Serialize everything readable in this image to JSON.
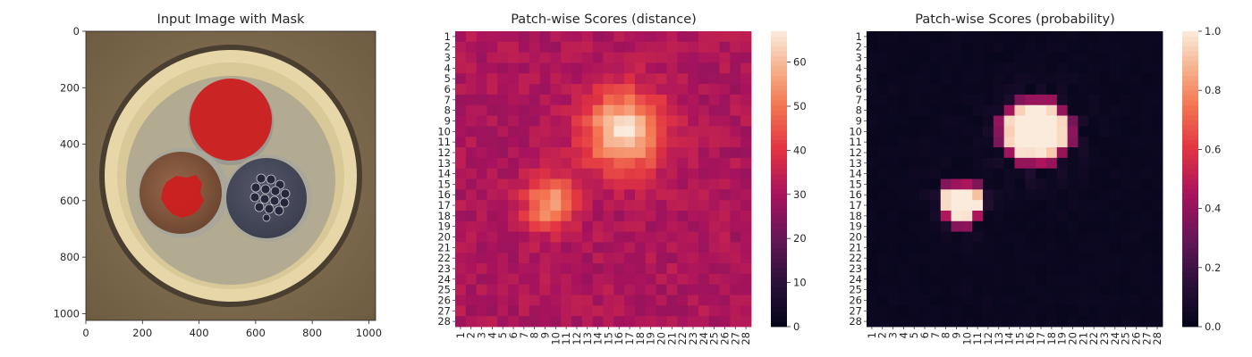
{
  "colors": {
    "masked_region": "#cc1f1f",
    "background": "#ffffff",
    "colormap_distance": "rocket",
    "colormap_probability": "rocket"
  },
  "chart_data": [
    {
      "type": "image",
      "title": "Input Image with Mask",
      "description_shown": "cross-section of a cable with three conductors; regions with red mask overlay",
      "x_ticks": [
        "0",
        "200",
        "400",
        "600",
        "800",
        "1000"
      ],
      "y_ticks": [
        "0",
        "200",
        "400",
        "600",
        "800",
        "1000"
      ],
      "xlim": [
        0,
        1024
      ],
      "ylim": [
        1024,
        0
      ]
    },
    {
      "type": "heatmap",
      "title": "Patch-wise Scores (distance)",
      "rows": 28,
      "cols": 28,
      "row_labels": [
        "1",
        "2",
        "3",
        "4",
        "5",
        "6",
        "7",
        "8",
        "9",
        "10",
        "11",
        "12",
        "13",
        "14",
        "15",
        "16",
        "17",
        "18",
        "19",
        "20",
        "21",
        "22",
        "23",
        "24",
        "25",
        "26",
        "27",
        "28"
      ],
      "col_labels": [
        "1",
        "2",
        "3",
        "4",
        "5",
        "6",
        "7",
        "8",
        "9",
        "10",
        "11",
        "12",
        "13",
        "14",
        "15",
        "16",
        "17",
        "18",
        "19",
        "20",
        "21",
        "22",
        "23",
        "24",
        "25",
        "26",
        "27",
        "28"
      ],
      "base_value": 31,
      "hotspots": [
        {
          "row": 10,
          "col": 16.5,
          "peak": 66,
          "sigma": 2.6
        },
        {
          "row": 16.8,
          "col": 9.5,
          "peak": 57,
          "sigma": 1.7
        }
      ],
      "colorbar": {
        "min": 0,
        "max": 67,
        "ticks": [
          0,
          10,
          20,
          30,
          40,
          50,
          60
        ]
      }
    },
    {
      "type": "heatmap",
      "title": "Patch-wise Scores (probability)",
      "rows": 28,
      "cols": 28,
      "row_labels": [
        "1",
        "2",
        "3",
        "4",
        "5",
        "6",
        "7",
        "8",
        "9",
        "10",
        "11",
        "12",
        "13",
        "14",
        "15",
        "16",
        "17",
        "18",
        "19",
        "20",
        "21",
        "22",
        "23",
        "24",
        "25",
        "26",
        "27",
        "28"
      ],
      "col_labels": [
        "1",
        "2",
        "3",
        "4",
        "5",
        "6",
        "7",
        "8",
        "9",
        "10",
        "11",
        "12",
        "13",
        "14",
        "15",
        "16",
        "17",
        "18",
        "19",
        "20",
        "21",
        "22",
        "23",
        "24",
        "25",
        "26",
        "27",
        "28"
      ],
      "base_value": 0.02,
      "hotspots": [
        {
          "row": 10,
          "col": 16.5,
          "peak": 1.0,
          "sigma": 2.6
        },
        {
          "row": 16.8,
          "col": 9.5,
          "peak": 1.0,
          "sigma": 1.7
        }
      ],
      "colorbar": {
        "min": 0.0,
        "max": 1.0,
        "ticks": [
          "0.0",
          "0.2",
          "0.4",
          "0.6",
          "0.8",
          "1.0"
        ]
      }
    }
  ]
}
